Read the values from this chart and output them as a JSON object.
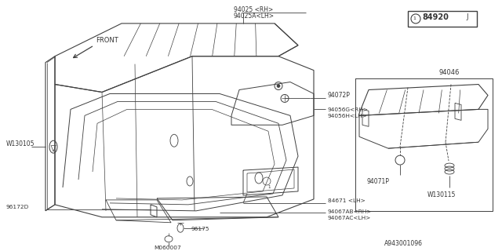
{
  "bg_color": "#ffffff",
  "line_color": "#404040",
  "text_color": "#333333",
  "badge_label": "84920",
  "footer_label": "A943001096",
  "labels": {
    "top_rh": "94025 <RH>",
    "top_lh": "94025A<LH>",
    "r1": "94072P",
    "r2a": "94056G<RH>",
    "r2b": "94056H<LH>",
    "left": "W130105",
    "b1": "84671 <LH>",
    "b2a": "94067AB<RH>",
    "b2b": "94067AC<LH>",
    "bl1": "96172D",
    "bl2": "96175",
    "bl3": "M060007",
    "sub_top": "94046",
    "sub1": "94071P",
    "sub2": "W130115",
    "front": "FRONT"
  }
}
